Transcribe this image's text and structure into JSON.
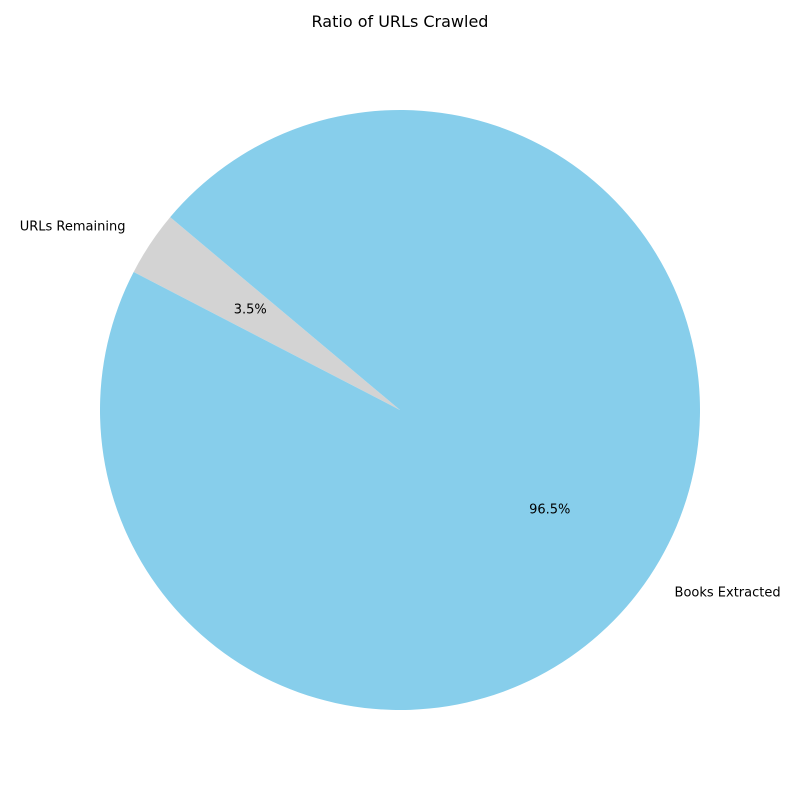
{
  "chart_data": {
    "type": "pie",
    "title": "Ratio of URLs Crawled",
    "slices": [
      {
        "label": "URLs Remaining",
        "value": 3.5,
        "percent_label": "3.5%",
        "color": "#d3d3d3"
      },
      {
        "label": "Books Extracted",
        "value": 96.5,
        "percent_label": "96.5%",
        "color": "#87ceeb"
      }
    ],
    "start_angle_deg": 140,
    "direction": "counterclockwise",
    "legend": "none"
  }
}
